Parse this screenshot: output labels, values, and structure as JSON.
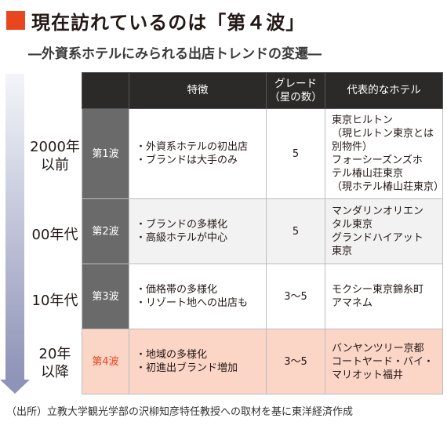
{
  "title": "現在訪れているのは「第４波」",
  "subtitle": "―外資系ホテルにみられる出店トレンドの変遷―",
  "headers": {
    "features": "特徴",
    "grade_line1": "グレード",
    "grade_line2": "（星の数）",
    "hotels": "代表的なホテル"
  },
  "eras": [
    {
      "line1": "2000年",
      "line2": "以前"
    },
    {
      "line1": "00年代",
      "line2": ""
    },
    {
      "line1": "10年代",
      "line2": ""
    },
    {
      "line1": "20年",
      "line2": "以降"
    }
  ],
  "rows": [
    {
      "wave": "第1波",
      "features": [
        "・外資系ホテルの初出店",
        "・ブランドは大手のみ"
      ],
      "grade": "5",
      "hotels": [
        "東京ヒルトン",
        "（現ヒルトン東京とは",
        "別物件）",
        "フォーシーズンズホ",
        "テル椿山荘東京",
        "（現ホテル椿山荘東京）"
      ]
    },
    {
      "wave": "第2波",
      "features": [
        "・ブランドの多様化",
        "・高級ホテルが中心"
      ],
      "grade": "5",
      "hotels": [
        "マンダリンオリエン",
        "タル東京",
        "グランドハイアット",
        "東京"
      ]
    },
    {
      "wave": "第3波",
      "features": [
        "・価格帯の多様化",
        "・リゾート地への出店も"
      ],
      "grade": "3〜5",
      "hotels": [
        "モクシー東京錦糸町",
        "アマネム"
      ]
    },
    {
      "wave": "第4波",
      "features": [
        "・地域の多様化",
        "・初進出ブランド増加"
      ],
      "grade": "3〜5",
      "hotels": [
        "バンヤンツリー京都",
        "コートヤード・バイ・",
        "マリオット福井"
      ]
    }
  ],
  "caption": "（出所）立教大学観光学部の沢柳知彦特任教授への取材を基に東洋経済作成",
  "colors": {
    "accent": "#e8461e",
    "header_bg": "#2b2a29",
    "wave_bg": "#6b6a6a",
    "highlight_bg": "#fbd5c6",
    "arrow": "#8e93b8"
  }
}
